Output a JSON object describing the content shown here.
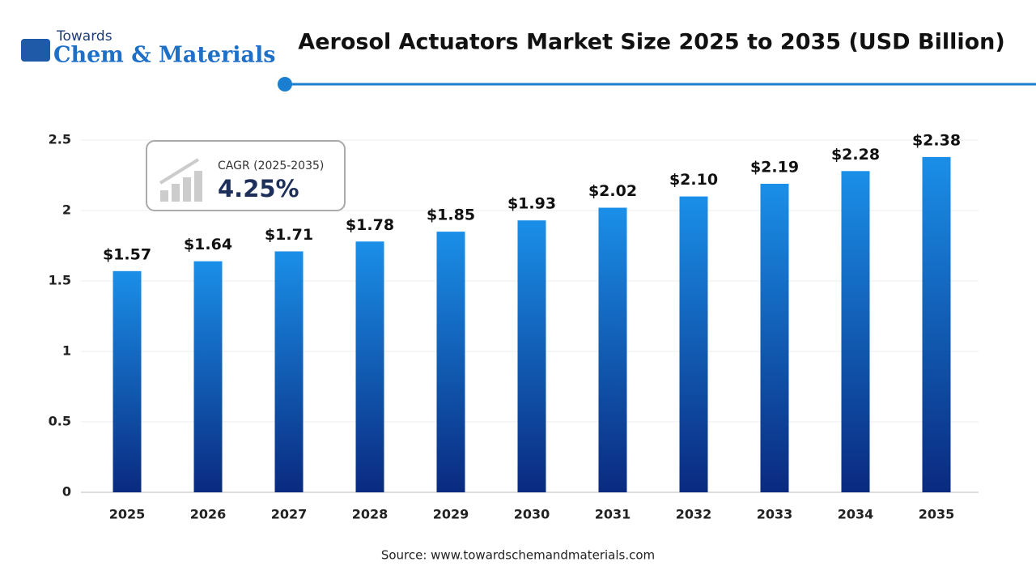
{
  "chart_data": {
    "type": "bar",
    "title": "Aerosol Actuators Market Size 2025 to 2035 (USD Billion)",
    "logo_top": "Towards",
    "logo_bottom": "Chem & Materials",
    "cagr_label": "CAGR (2025-2035)",
    "cagr_value": "4.25%",
    "source": "Source: www.towardschemandmaterials.com",
    "categories": [
      "2025",
      "2026",
      "2027",
      "2028",
      "2029",
      "2030",
      "2031",
      "2032",
      "2033",
      "2034",
      "2035"
    ],
    "values": [
      1.57,
      1.64,
      1.71,
      1.78,
      1.85,
      1.93,
      2.02,
      2.1,
      2.19,
      2.28,
      2.38
    ],
    "value_labels": [
      "$1.57",
      "$1.64",
      "$1.71",
      "$1.78",
      "$1.85",
      "$1.93",
      "$2.02",
      "$2.10",
      "$2.19",
      "$2.28",
      "$2.38"
    ],
    "color": "#1a8fe8",
    "ylim": [
      0,
      2.5
    ],
    "yticks": [
      0,
      0.5,
      1,
      1.5,
      2,
      2.5
    ],
    "grid": true
  }
}
